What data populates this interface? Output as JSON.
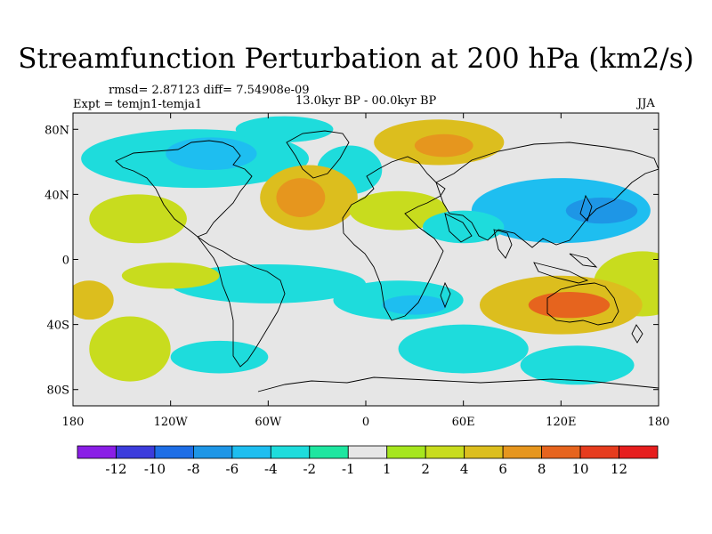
{
  "title": "Streamfunction Perturbation at 200 hPa (km2/s)",
  "stats_text": "rmsd= 2.87123 diff= 7.54908e-09",
  "expt_text": "Expt = temjn1-temja1",
  "period_text": "13.0kyr BP - 00.0kyr BP",
  "season_text": "JJA",
  "map": {
    "lon_range": [
      -180,
      180
    ],
    "lat_range": [
      -90,
      90
    ],
    "lat_ticks": [
      {
        "value": 80,
        "label": "80N"
      },
      {
        "value": 40,
        "label": "40N"
      },
      {
        "value": 0,
        "label": "0"
      },
      {
        "value": -40,
        "label": "40S"
      },
      {
        "value": -80,
        "label": "80S"
      }
    ],
    "lon_ticks": [
      {
        "value": -180,
        "label": "180"
      },
      {
        "value": -120,
        "label": "120W"
      },
      {
        "value": -60,
        "label": "60W"
      },
      {
        "value": 0,
        "label": "0"
      },
      {
        "value": 60,
        "label": "60E"
      },
      {
        "value": 120,
        "label": "120E"
      },
      {
        "value": 180,
        "label": "180"
      }
    ]
  },
  "colorbar": {
    "colors": [
      "#8a1ee6",
      "#3c3cdc",
      "#1e6ee6",
      "#1e96e6",
      "#1ebef0",
      "#1edcdc",
      "#1ee6a0",
      "#e6e6e6",
      "#a6e61e",
      "#c8dc1e",
      "#dcbe1e",
      "#e6961e",
      "#e6641e",
      "#e63c1e",
      "#e61e1e"
    ],
    "labels": [
      "-12",
      "-10",
      "-8",
      "-6",
      "-4",
      "-2",
      "-1",
      "1",
      "2",
      "4",
      "6",
      "8",
      "10",
      "12"
    ]
  },
  "field_blobs": [
    {
      "lon": -105,
      "lat": 62,
      "rx": 70,
      "ry": 18,
      "v": -4
    },
    {
      "lon": -95,
      "lat": 65,
      "rx": 28,
      "ry": 10,
      "v": -6
    },
    {
      "lon": -50,
      "lat": 80,
      "rx": 30,
      "ry": 8,
      "v": -4
    },
    {
      "lon": -10,
      "lat": 55,
      "rx": 20,
      "ry": 15,
      "v": -3
    },
    {
      "lon": 45,
      "lat": 72,
      "rx": 40,
      "ry": 14,
      "v": 5
    },
    {
      "lon": 48,
      "lat": 70,
      "rx": 18,
      "ry": 7,
      "v": 7
    },
    {
      "lon": -35,
      "lat": 38,
      "rx": 30,
      "ry": 20,
      "v": 5
    },
    {
      "lon": -40,
      "lat": 38,
      "rx": 15,
      "ry": 12,
      "v": 7
    },
    {
      "lon": 20,
      "lat": 30,
      "rx": 30,
      "ry": 12,
      "v": 2
    },
    {
      "lon": -140,
      "lat": 25,
      "rx": 30,
      "ry": 15,
      "v": 2
    },
    {
      "lon": 120,
      "lat": 30,
      "rx": 55,
      "ry": 20,
      "v": -5
    },
    {
      "lon": 145,
      "lat": 30,
      "rx": 22,
      "ry": 8,
      "v": -8
    },
    {
      "lon": 60,
      "lat": 20,
      "rx": 25,
      "ry": 10,
      "v": -3
    },
    {
      "lon": 170,
      "lat": -15,
      "rx": 30,
      "ry": 20,
      "v": 2
    },
    {
      "lon": -60,
      "lat": -15,
      "rx": 60,
      "ry": 12,
      "v": -3
    },
    {
      "lon": 20,
      "lat": -25,
      "rx": 40,
      "ry": 12,
      "v": -4
    },
    {
      "lon": 30,
      "lat": -28,
      "rx": 20,
      "ry": 6,
      "v": -6
    },
    {
      "lon": 120,
      "lat": -28,
      "rx": 50,
      "ry": 18,
      "v": 5
    },
    {
      "lon": 125,
      "lat": -28,
      "rx": 25,
      "ry": 8,
      "v": 8
    },
    {
      "lon": 60,
      "lat": -55,
      "rx": 40,
      "ry": 15,
      "v": -4
    },
    {
      "lon": 130,
      "lat": -65,
      "rx": 35,
      "ry": 12,
      "v": -3
    },
    {
      "lon": -145,
      "lat": -55,
      "rx": 25,
      "ry": 20,
      "v": 2
    },
    {
      "lon": -170,
      "lat": -25,
      "rx": 15,
      "ry": 12,
      "v": 5
    },
    {
      "lon": -120,
      "lat": -10,
      "rx": 30,
      "ry": 8,
      "v": 2
    },
    {
      "lon": -90,
      "lat": -60,
      "rx": 30,
      "ry": 10,
      "v": -3
    }
  ]
}
